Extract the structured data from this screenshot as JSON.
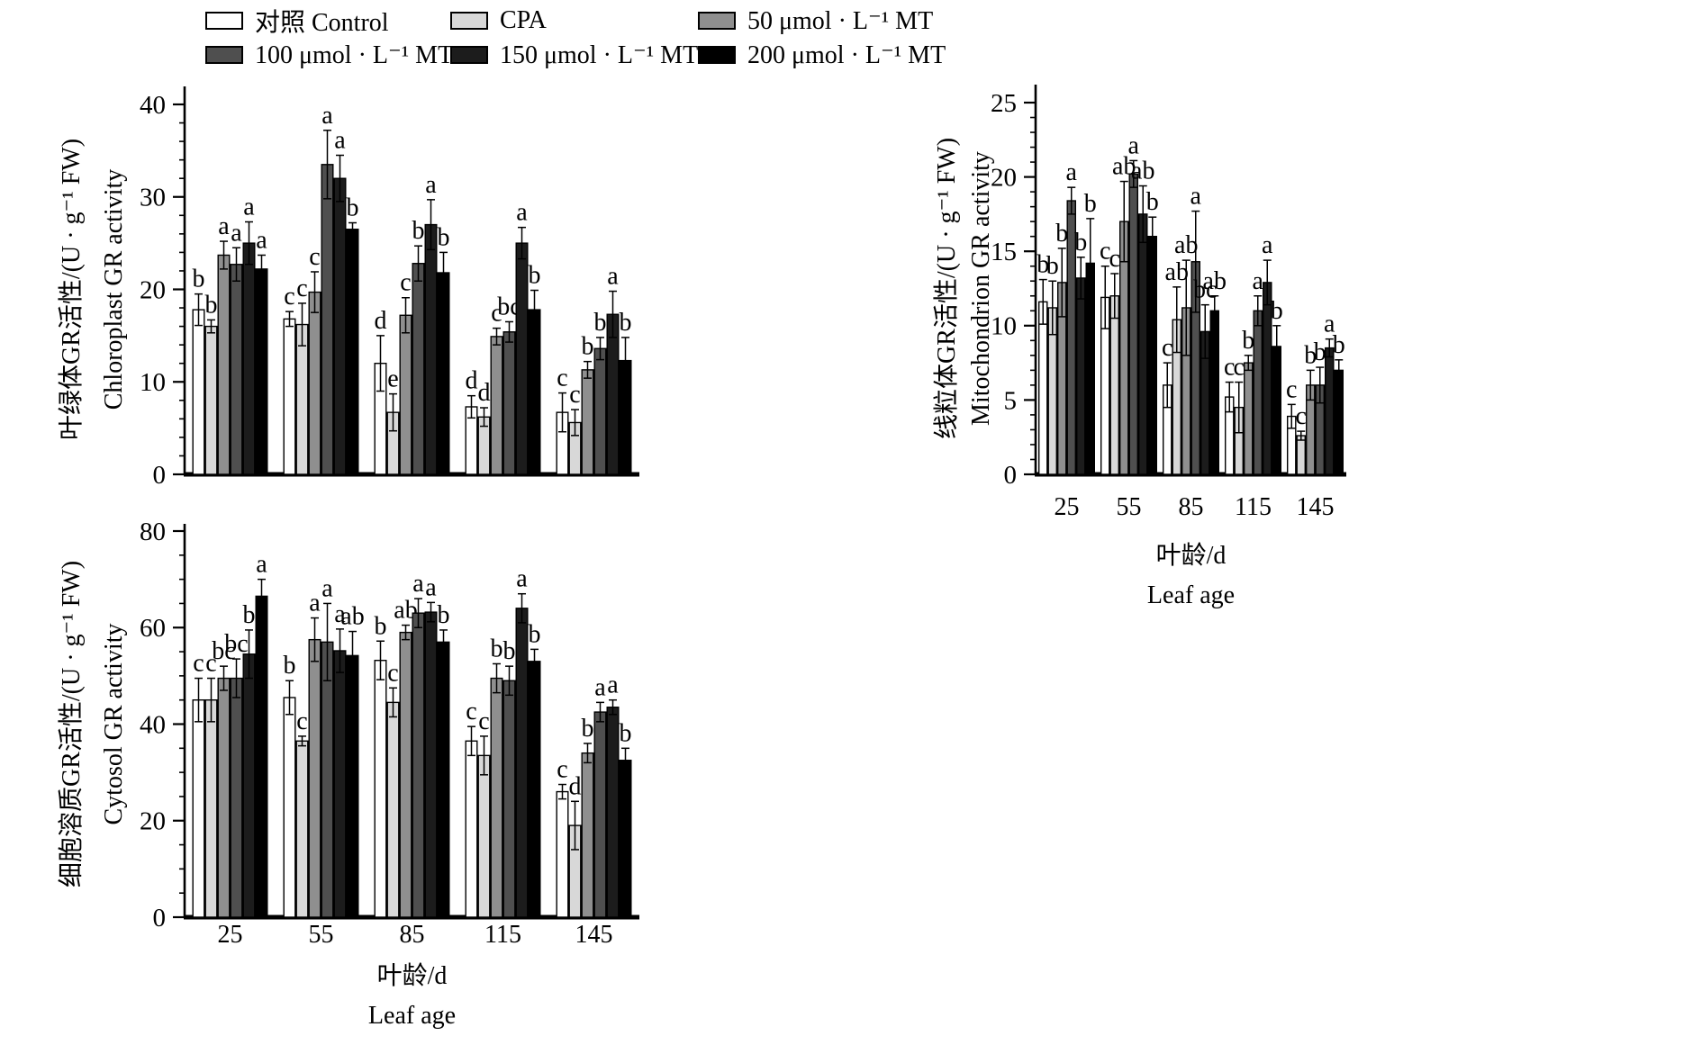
{
  "page": {
    "background": "#ffffff"
  },
  "legend": {
    "items": [
      {
        "label": "对照 Control",
        "color": "#ffffff"
      },
      {
        "label": "CPA",
        "color": "#d8d8d8"
      },
      {
        "label": "50 μmol · L⁻¹ MT",
        "color": "#8f8f8f"
      },
      {
        "label": "100 μmol · L⁻¹ MT",
        "color": "#4f4f4f"
      },
      {
        "label": "150 μmol · L⁻¹ MT",
        "color": "#1c1c1c"
      },
      {
        "label": "200 μmol · L⁻¹ MT",
        "color": "#000000"
      }
    ]
  },
  "chart_data": [
    {
      "id": "chloroplast",
      "type": "bar",
      "ylabel_zh": "叶绿体GR活性/(U · g⁻¹ FW)",
      "ylabel_en": "Chloroplast GR activity",
      "xlabel_zh": "叶龄/d",
      "xlabel_en": "Leaf age",
      "show_xlabels": false,
      "categories": [
        "25",
        "55",
        "85",
        "115",
        "145"
      ],
      "ylim": [
        0,
        40
      ],
      "ytick_step": 10,
      "minor_step": 2,
      "grid": false,
      "legend_position": "top",
      "series": [
        {
          "name": "对照 Control",
          "values": [
            17.8,
            16.8,
            12.0,
            7.3,
            6.7
          ],
          "errors": [
            1.7,
            0.8,
            3.0,
            1.2,
            2.1
          ],
          "letters": [
            "b",
            "c",
            "d",
            "d",
            "c"
          ]
        },
        {
          "name": "CPA",
          "values": [
            16.0,
            16.2,
            6.7,
            6.2,
            5.6
          ],
          "errors": [
            0.7,
            2.3,
            2.0,
            1.0,
            1.4
          ],
          "letters": [
            "b",
            "c",
            "e",
            "d",
            "c"
          ]
        },
        {
          "name": "50 μmol · L⁻¹ MT",
          "values": [
            23.7,
            19.7,
            17.2,
            14.9,
            11.3
          ],
          "errors": [
            1.5,
            2.2,
            1.9,
            0.9,
            0.9
          ],
          "letters": [
            "a",
            "c",
            "c",
            "c",
            "b"
          ]
        },
        {
          "name": "100 μmol · L⁻¹ MT",
          "values": [
            22.7,
            33.5,
            22.8,
            15.4,
            13.6
          ],
          "errors": [
            1.8,
            3.7,
            1.9,
            1.1,
            1.2
          ],
          "letters": [
            "a",
            "a",
            "b",
            "bc",
            "b"
          ]
        },
        {
          "name": "150 μmol · L⁻¹ MT",
          "values": [
            25.0,
            32.0,
            27.0,
            25.0,
            17.3
          ],
          "errors": [
            2.3,
            2.5,
            2.7,
            1.7,
            2.5
          ],
          "letters": [
            "a",
            "a",
            "a",
            "a",
            "a"
          ]
        },
        {
          "name": "200 μmol · L⁻¹ MT",
          "values": [
            22.2,
            26.5,
            21.8,
            17.8,
            12.3
          ],
          "errors": [
            1.5,
            0.7,
            2.2,
            2.1,
            2.5
          ],
          "letters": [
            "a",
            "b",
            "b",
            "b",
            "b"
          ]
        }
      ]
    },
    {
      "id": "mitochondrion",
      "type": "bar",
      "ylabel_zh": "线粒体GR活性/(U · g⁻¹ FW)",
      "ylabel_en": "Mitochondrion GR activity",
      "xlabel_zh": "叶龄/d",
      "xlabel_en": "Leaf age",
      "show_xlabels": true,
      "categories": [
        "25",
        "55",
        "85",
        "115",
        "145"
      ],
      "ylim": [
        0,
        25
      ],
      "ytick_step": 5,
      "minor_step": 1,
      "grid": false,
      "legend_position": "top",
      "series": [
        {
          "name": "对照 Control",
          "values": [
            11.6,
            11.9,
            6.0,
            5.2,
            3.9
          ],
          "errors": [
            1.5,
            2.1,
            1.5,
            1.0,
            0.8
          ],
          "letters": [
            "b",
            "c",
            "c",
            "c",
            "c"
          ]
        },
        {
          "name": "CPA",
          "values": [
            11.2,
            12.0,
            10.4,
            4.5,
            2.6
          ],
          "errors": [
            1.8,
            1.5,
            2.2,
            1.7,
            0.3
          ],
          "letters": [
            "b",
            "c",
            "ab",
            "c",
            "c"
          ]
        },
        {
          "name": "50 μmol · L⁻¹ MT",
          "values": [
            12.9,
            17.0,
            11.2,
            7.5,
            6.0
          ],
          "errors": [
            2.3,
            2.7,
            3.2,
            0.5,
            1.0
          ],
          "letters": [
            "b",
            "ab",
            "ab",
            "b",
            "b"
          ]
        },
        {
          "name": "100 μmol · L⁻¹ MT",
          "values": [
            18.4,
            20.2,
            14.3,
            11.0,
            6.0
          ],
          "errors": [
            0.9,
            0.9,
            3.4,
            1.0,
            1.2
          ],
          "letters": [
            "a",
            "a",
            "a",
            "a",
            "b"
          ]
        },
        {
          "name": "150 μmol · L⁻¹ MT",
          "values": [
            13.2,
            17.5,
            9.6,
            12.9,
            8.5
          ],
          "errors": [
            1.4,
            1.9,
            1.8,
            1.5,
            0.6
          ],
          "letters": [
            "b",
            "ab",
            "bc",
            "a",
            "a"
          ]
        },
        {
          "name": "200 μmol · L⁻¹ MT",
          "values": [
            14.2,
            16.0,
            11.0,
            8.6,
            7.0
          ],
          "errors": [
            3.0,
            1.3,
            1.0,
            1.4,
            0.7
          ],
          "letters": [
            "b",
            "b",
            "ab",
            "b",
            "b"
          ]
        }
      ]
    },
    {
      "id": "cytosol",
      "type": "bar",
      "ylabel_zh": "细胞溶质GR活性/(U · g⁻¹ FW)",
      "ylabel_en": "Cytosol GR activity",
      "xlabel_zh": "叶龄/d",
      "xlabel_en": "Leaf age",
      "show_xlabels": true,
      "categories": [
        "25",
        "55",
        "85",
        "115",
        "145"
      ],
      "ylim": [
        0,
        80
      ],
      "ytick_step": 20,
      "minor_step": 5,
      "grid": false,
      "legend_position": "top",
      "series": [
        {
          "name": "对照 Control",
          "values": [
            45.0,
            45.5,
            53.2,
            36.5,
            26.0
          ],
          "errors": [
            4.5,
            3.5,
            4.0,
            3.0,
            1.5
          ],
          "letters": [
            "c",
            "b",
            "b",
            "c",
            "c"
          ]
        },
        {
          "name": "CPA",
          "values": [
            45.0,
            36.5,
            44.5,
            33.5,
            19.0
          ],
          "errors": [
            4.5,
            1.0,
            3.0,
            4.0,
            5.0
          ],
          "letters": [
            "c",
            "c",
            "c",
            "c",
            "d"
          ]
        },
        {
          "name": "50 μmol · L⁻¹ MT",
          "values": [
            49.5,
            57.5,
            59.0,
            49.5,
            34.0
          ],
          "errors": [
            2.5,
            4.5,
            1.5,
            3.0,
            2.0
          ],
          "letters": [
            "bc",
            "a",
            "ab",
            "b",
            "b"
          ]
        },
        {
          "name": "100 μmol · L⁻¹ MT",
          "values": [
            49.5,
            57.0,
            63.0,
            49.0,
            42.5
          ],
          "errors": [
            4.0,
            8.0,
            3.0,
            3.0,
            2.0
          ],
          "letters": [
            "bc",
            "a",
            "a",
            "b",
            "a"
          ]
        },
        {
          "name": "150 μmol · L⁻¹ MT",
          "values": [
            54.5,
            55.2,
            63.2,
            64.0,
            43.5
          ],
          "errors": [
            5.0,
            4.5,
            2.0,
            3.0,
            1.5
          ],
          "letters": [
            "b",
            "a",
            "a",
            "a",
            "a"
          ]
        },
        {
          "name": "200 μmol · L⁻¹ MT",
          "values": [
            66.5,
            54.2,
            57.0,
            53.0,
            32.5
          ],
          "errors": [
            3.5,
            5.0,
            2.5,
            2.5,
            2.5
          ],
          "letters": [
            "a",
            "ab",
            "b",
            "b",
            "b"
          ]
        }
      ]
    }
  ]
}
